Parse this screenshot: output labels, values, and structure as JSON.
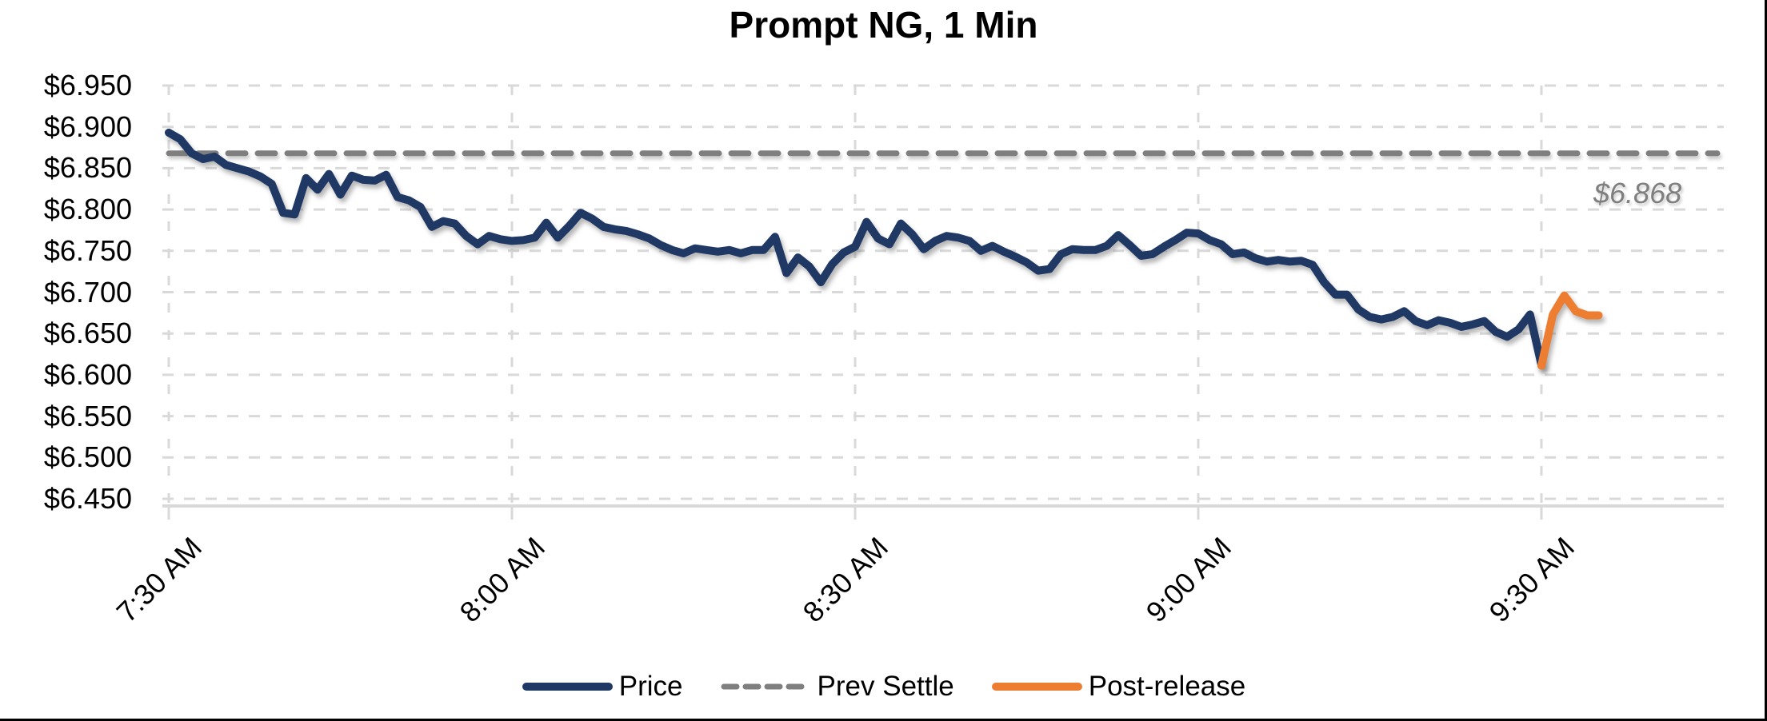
{
  "title": "Prompt NG, 1 Min",
  "annotation": {
    "prev_settle_label": "$6.868"
  },
  "legend": [
    {
      "label": "Price",
      "color": "#1F3864",
      "style": "solid"
    },
    {
      "label": "Prev Settle",
      "color": "#7F7F7F",
      "style": "dashed"
    },
    {
      "label": "Post-release",
      "color": "#ED7D31",
      "style": "solid"
    }
  ],
  "chart_data": {
    "type": "line",
    "title": "Prompt NG, 1 Min",
    "xlabel": "",
    "ylabel": "",
    "x_unit": "1-minute bars starting at 7:30 AM",
    "x_tick_minutes": [
      0,
      30,
      60,
      90,
      120
    ],
    "x_tick_labels": [
      "7:30 AM",
      "8:00 AM",
      "8:30 AM",
      "9:00 AM",
      "9:30 AM"
    ],
    "y_ticks": [
      6.95,
      6.9,
      6.85,
      6.8,
      6.75,
      6.7,
      6.65,
      6.6,
      6.55,
      6.5,
      6.45
    ],
    "y_tick_labels": [
      "$6.950",
      "$6.900",
      "$6.850",
      "$6.800",
      "$6.750",
      "$6.700",
      "$6.650",
      "$6.600",
      "$6.550",
      "$6.500",
      "$6.450"
    ],
    "ylim": [
      6.45,
      6.95
    ],
    "grid": true,
    "legend_position": "bottom",
    "prev_settle_value": 6.868,
    "series": [
      {
        "name": "Price",
        "color": "#1F3864",
        "start_minute": 0,
        "values": [
          6.893,
          6.885,
          6.868,
          6.861,
          6.864,
          6.854,
          6.85,
          6.846,
          6.84,
          6.831,
          6.796,
          6.794,
          6.838,
          6.824,
          6.843,
          6.818,
          6.841,
          6.836,
          6.835,
          6.842,
          6.815,
          6.811,
          6.803,
          6.779,
          6.786,
          6.783,
          6.768,
          6.758,
          6.768,
          6.764,
          6.762,
          6.763,
          6.766,
          6.784,
          6.766,
          6.78,
          6.796,
          6.789,
          6.779,
          6.776,
          6.774,
          6.77,
          6.765,
          6.757,
          6.751,
          6.747,
          6.753,
          6.751,
          6.749,
          6.751,
          6.747,
          6.751,
          6.751,
          6.767,
          6.723,
          6.742,
          6.731,
          6.712,
          6.734,
          6.748,
          6.755,
          6.785,
          6.765,
          6.758,
          6.783,
          6.77,
          6.752,
          6.762,
          6.768,
          6.766,
          6.762,
          6.75,
          6.756,
          6.749,
          6.743,
          6.736,
          6.726,
          6.728,
          6.746,
          6.752,
          6.751,
          6.751,
          6.756,
          6.769,
          6.757,
          6.744,
          6.746,
          6.755,
          6.763,
          6.772,
          6.771,
          6.763,
          6.758,
          6.746,
          6.748,
          6.741,
          6.737,
          6.739,
          6.737,
          6.738,
          6.733,
          6.712,
          6.697,
          6.697,
          6.679,
          6.67,
          6.667,
          6.67,
          6.677,
          6.665,
          6.66,
          6.666,
          6.663,
          6.658,
          6.661,
          6.665,
          6.652,
          6.646,
          6.655,
          6.673,
          6.612
        ]
      },
      {
        "name": "Post-release",
        "color": "#ED7D31",
        "start_minute": 120,
        "values": [
          6.611,
          6.673,
          6.696,
          6.677,
          6.672,
          6.672
        ]
      },
      {
        "name": "Prev Settle",
        "color": "#7F7F7F",
        "type": "horizontal-line",
        "value": 6.868
      }
    ]
  }
}
